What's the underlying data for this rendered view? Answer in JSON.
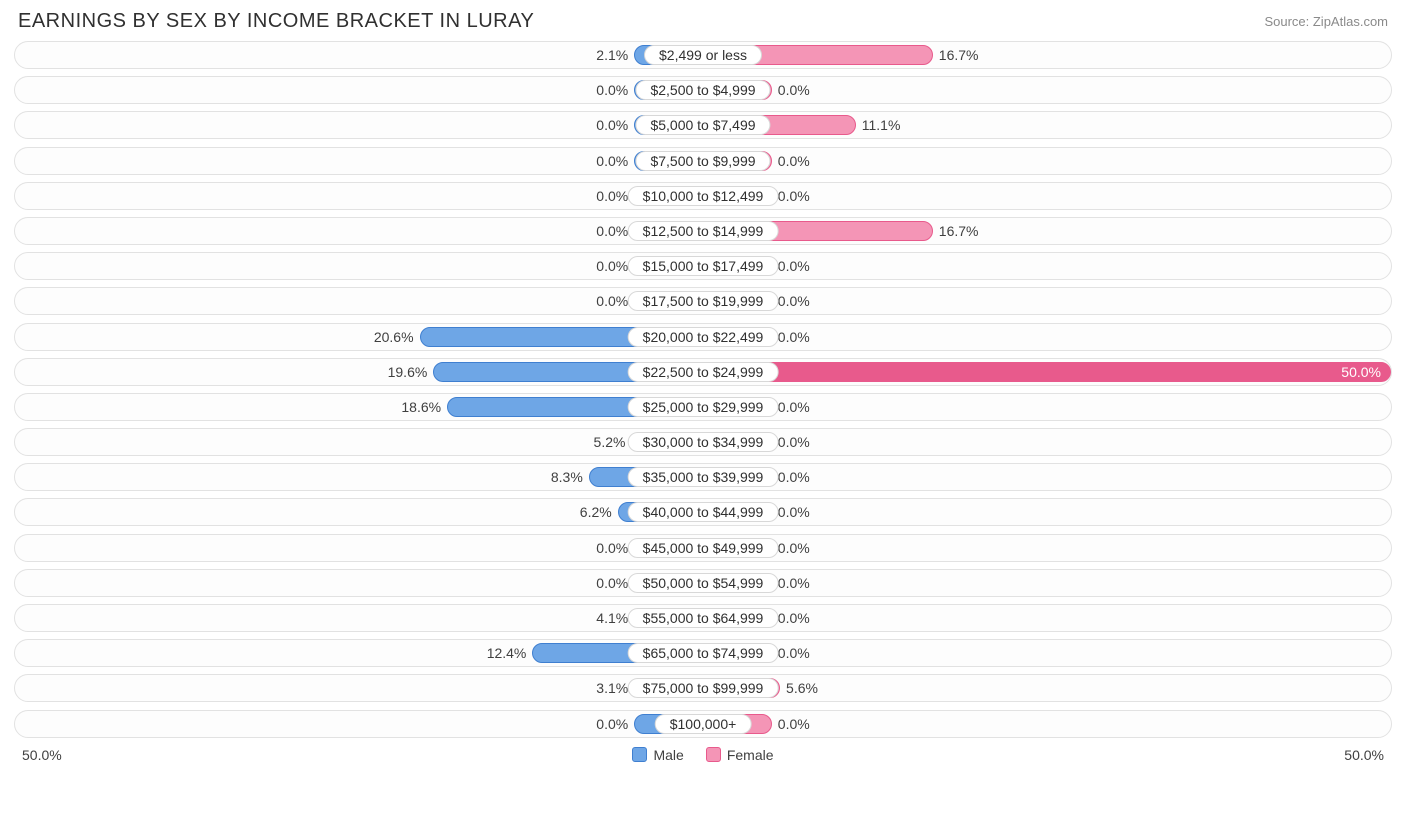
{
  "title": "EARNINGS BY SEX BY INCOME BRACKET IN LURAY",
  "source": "Source: ZipAtlas.com",
  "axis_max_pct": 50.0,
  "axis_left_label": "50.0%",
  "axis_right_label": "50.0%",
  "min_bar_pct": 5.0,
  "colors": {
    "male_fill": "#6ea6e6",
    "male_border": "#3f7fd0",
    "female_fill": "#f495b6",
    "female_border": "#e85a8c",
    "track_border": "#e2e2e2",
    "track_bg": "#fdfdfd",
    "text": "#303030",
    "label_text": "#404040",
    "source_text": "#8a8a8a"
  },
  "legend": {
    "male": "Male",
    "female": "Female"
  },
  "rows": [
    {
      "label": "$2,499 or less",
      "male": 2.1,
      "female": 16.7
    },
    {
      "label": "$2,500 to $4,999",
      "male": 0.0,
      "female": 0.0
    },
    {
      "label": "$5,000 to $7,499",
      "male": 0.0,
      "female": 11.1
    },
    {
      "label": "$7,500 to $9,999",
      "male": 0.0,
      "female": 0.0
    },
    {
      "label": "$10,000 to $12,499",
      "male": 0.0,
      "female": 0.0
    },
    {
      "label": "$12,500 to $14,999",
      "male": 0.0,
      "female": 16.7
    },
    {
      "label": "$15,000 to $17,499",
      "male": 0.0,
      "female": 0.0
    },
    {
      "label": "$17,500 to $19,999",
      "male": 0.0,
      "female": 0.0
    },
    {
      "label": "$20,000 to $22,499",
      "male": 20.6,
      "female": 0.0
    },
    {
      "label": "$22,500 to $24,999",
      "male": 19.6,
      "female": 50.0
    },
    {
      "label": "$25,000 to $29,999",
      "male": 18.6,
      "female": 0.0
    },
    {
      "label": "$30,000 to $34,999",
      "male": 5.2,
      "female": 0.0
    },
    {
      "label": "$35,000 to $39,999",
      "male": 8.3,
      "female": 0.0
    },
    {
      "label": "$40,000 to $44,999",
      "male": 6.2,
      "female": 0.0
    },
    {
      "label": "$45,000 to $49,999",
      "male": 0.0,
      "female": 0.0
    },
    {
      "label": "$50,000 to $54,999",
      "male": 0.0,
      "female": 0.0
    },
    {
      "label": "$55,000 to $64,999",
      "male": 4.1,
      "female": 0.0
    },
    {
      "label": "$65,000 to $74,999",
      "male": 12.4,
      "female": 0.0
    },
    {
      "label": "$75,000 to $99,999",
      "male": 3.1,
      "female": 5.6
    },
    {
      "label": "$100,000+",
      "male": 0.0,
      "female": 0.0
    }
  ]
}
